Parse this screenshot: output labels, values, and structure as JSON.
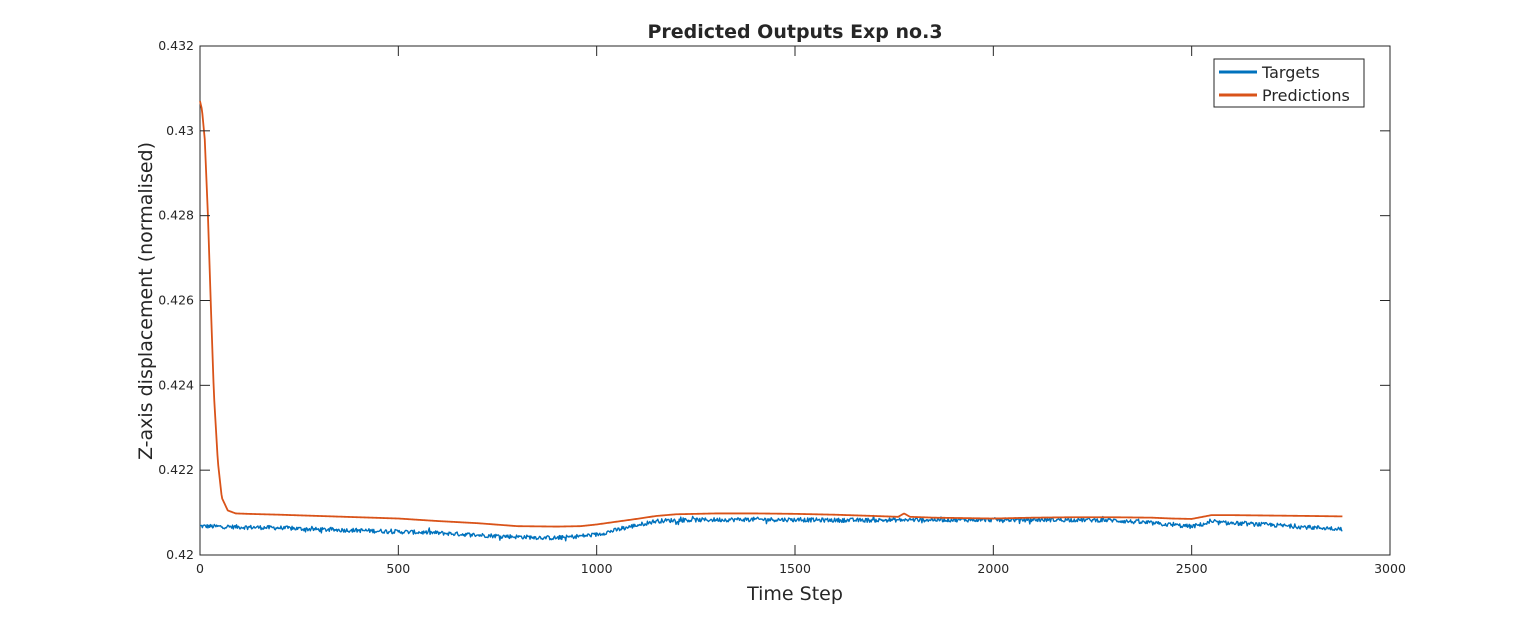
{
  "chart_data": {
    "type": "line",
    "title": "Predicted Outputs Exp no.3",
    "xlabel": "Time Step",
    "ylabel": "Z-axis displacement (normalised)",
    "xlim": [
      0,
      3000
    ],
    "ylim": [
      0.42,
      0.432
    ],
    "xticks": [
      0,
      500,
      1000,
      1500,
      2000,
      2500,
      3000
    ],
    "xtick_labels": [
      "0",
      "500",
      "1000",
      "1500",
      "2000",
      "2500",
      "3000"
    ],
    "yticks": [
      0.42,
      0.422,
      0.424,
      0.426,
      0.428,
      0.43,
      0.432
    ],
    "ytick_labels": [
      "0.42",
      "0.422",
      "0.424",
      "0.426",
      "0.428",
      "0.43",
      "0.432"
    ],
    "grid": false,
    "legend_location": "top-right",
    "series": [
      {
        "name": "Targets",
        "color": "#0072BD",
        "noise": 5e-05,
        "x": [
          0,
          100,
          200,
          300,
          400,
          500,
          600,
          700,
          800,
          900,
          1000,
          1100,
          1150,
          1200,
          1300,
          1400,
          1500,
          1600,
          1700,
          1800,
          1900,
          2000,
          2100,
          2200,
          2300,
          2400,
          2500,
          2550,
          2600,
          2700,
          2800,
          2880
        ],
        "y": [
          0.42068,
          0.42066,
          0.42064,
          0.4206,
          0.42058,
          0.42055,
          0.42052,
          0.42047,
          0.42043,
          0.4204,
          0.42048,
          0.4207,
          0.4208,
          0.42082,
          0.42083,
          0.42084,
          0.42083,
          0.42082,
          0.42082,
          0.42083,
          0.42083,
          0.42083,
          0.42083,
          0.42083,
          0.42082,
          0.42075,
          0.42067,
          0.42077,
          0.42075,
          0.42071,
          0.42065,
          0.42062
        ]
      },
      {
        "name": "Predictions",
        "color": "#D95319",
        "noise": 0,
        "x": [
          0,
          5,
          12,
          20,
          28,
          35,
          45,
          55,
          70,
          90,
          120,
          200,
          300,
          400,
          500,
          600,
          700,
          800,
          900,
          960,
          1000,
          1100,
          1150,
          1200,
          1300,
          1400,
          1500,
          1600,
          1700,
          1760,
          1775,
          1790,
          1850,
          2000,
          2100,
          2200,
          2300,
          2400,
          2450,
          2500,
          2550,
          2600,
          2700,
          2800,
          2880
        ],
        "y": [
          0.4307,
          0.4305,
          0.4298,
          0.428,
          0.4257,
          0.4238,
          0.4222,
          0.42135,
          0.42105,
          0.42098,
          0.42097,
          0.42095,
          0.42092,
          0.42089,
          0.42086,
          0.4208,
          0.42075,
          0.42068,
          0.42067,
          0.42068,
          0.42072,
          0.42085,
          0.42092,
          0.42096,
          0.42098,
          0.42098,
          0.42097,
          0.42095,
          0.42092,
          0.4209,
          0.42098,
          0.4209,
          0.42088,
          0.42086,
          0.42088,
          0.42089,
          0.42089,
          0.42088,
          0.42086,
          0.42085,
          0.42094,
          0.42094,
          0.42093,
          0.42092,
          0.42091
        ]
      }
    ]
  }
}
